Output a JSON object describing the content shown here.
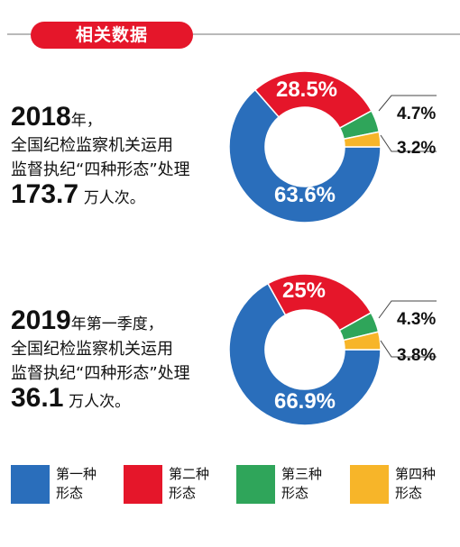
{
  "header": {
    "title": "相关数据"
  },
  "blocks": [
    {
      "year": "2018",
      "year_suffix": "年，",
      "line2": "全国纪检监察机关运用",
      "line3": "监督执纪“四种形态”处理",
      "total": "173.7",
      "total_unit": "万人次。"
    },
    {
      "year": "2019",
      "year_suffix": "年第一季度，",
      "line2": "全国纪检监察机关运用",
      "line3": "监督执纪“四种形态”处理",
      "total": "36.1",
      "total_unit": "万人次。"
    }
  ],
  "legend": [
    {
      "line1": "第一种",
      "line2": "形态",
      "color": "#2a6ebb"
    },
    {
      "line1": "第二种",
      "line2": "形态",
      "color": "#e5162a"
    },
    {
      "line1": "第三种",
      "line2": "形态",
      "color": "#2fa55a"
    },
    {
      "line1": "第四种",
      "line2": "形态",
      "color": "#f7b529"
    }
  ],
  "chart_data": [
    {
      "type": "pie",
      "categories": [
        "第一种形态",
        "第二种形态",
        "第三种形态",
        "第四种形态"
      ],
      "values": [
        63.6,
        28.5,
        4.7,
        3.2
      ],
      "labels": [
        "63.6%",
        "28.5%",
        "4.7%",
        "3.2%"
      ],
      "colors": [
        "#2a6ebb",
        "#e5162a",
        "#2fa55a",
        "#f7b529"
      ]
    },
    {
      "type": "pie",
      "categories": [
        "第一种形态",
        "第二种形态",
        "第三种形态",
        "第四种形态"
      ],
      "values": [
        66.9,
        25,
        4.3,
        3.8
      ],
      "labels": [
        "66.9%",
        "25%",
        "4.3%",
        "3.8%"
      ],
      "colors": [
        "#2a6ebb",
        "#e5162a",
        "#2fa55a",
        "#f7b529"
      ]
    }
  ]
}
